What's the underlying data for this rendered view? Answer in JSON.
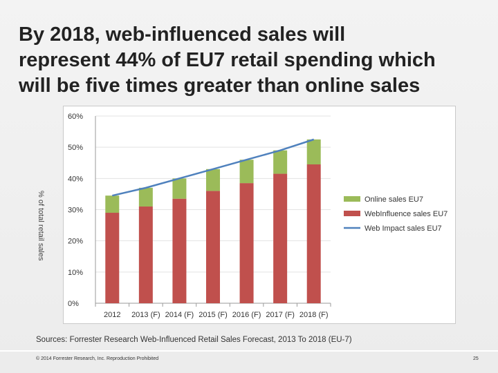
{
  "slide": {
    "title_lines": [
      "By 2018, web-influenced sales will",
      "represent 44% of EU7 retail spending which",
      "will be five times greater than online sales"
    ],
    "source": "Sources: Forrester Research Web-Influenced Retail Sales Forecast, 2013 To 2018 (EU-7)",
    "copyright": "© 2014 Forrester Research, Inc. Reproduction Prohibited",
    "page_number": "25"
  },
  "chart_data": {
    "type": "bar",
    "stacked": true,
    "categories": [
      "2012",
      "2013 (F)",
      "2014 (F)",
      "2015 (F)",
      "2016 (F)",
      "2017 (F)",
      "2018 (F)"
    ],
    "ylabel": "% of total retail sales",
    "ylim": [
      0,
      60
    ],
    "yticks": [
      0,
      10,
      20,
      30,
      40,
      50,
      60
    ],
    "ytick_labels": [
      "0%",
      "10%",
      "20%",
      "30%",
      "40%",
      "50%",
      "60%"
    ],
    "grid": true,
    "legend_position": "right",
    "series": [
      {
        "name": "WebInfluence sales EU7",
        "kind": "bar",
        "color": "#c0504d",
        "values": [
          29,
          31,
          33.5,
          36,
          38.5,
          41.5,
          44.5
        ]
      },
      {
        "name": "Online sales EU7",
        "kind": "bar",
        "color": "#9bbb59",
        "values": [
          5.5,
          6,
          6.5,
          7,
          7.5,
          7.5,
          8
        ]
      },
      {
        "name": "Web Impact sales EU7",
        "kind": "line",
        "color": "#4f81bd",
        "values": [
          34.5,
          37,
          40,
          43,
          46,
          49,
          52.5
        ]
      }
    ],
    "legend_order": [
      "Online sales EU7",
      "WebInfluence sales EU7",
      "Web Impact sales EU7"
    ]
  }
}
